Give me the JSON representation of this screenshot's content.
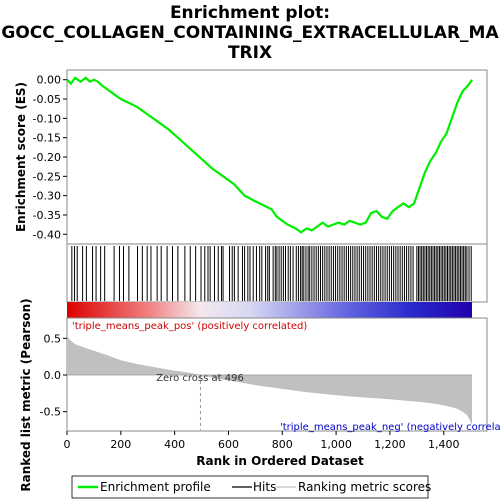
{
  "chart_data": {
    "type": "line",
    "title_lines": [
      "Enrichment plot:",
      "GOCC_COLLAGEN_CONTAINING_EXTRACELLULAR_MA",
      "TRIX"
    ],
    "es_panel": {
      "ylabel": "Enrichment score (ES)",
      "ylim": [
        -0.42,
        0.02
      ],
      "yticks": [
        "0.00",
        "-0.05",
        "-0.10",
        "-0.15",
        "-0.20",
        "-0.25",
        "-0.30",
        "-0.35",
        "-0.40"
      ],
      "series": [
        {
          "name": "Enrichment profile",
          "color": "#00ee00",
          "x": [
            0,
            15,
            30,
            50,
            70,
            85,
            100,
            115,
            130,
            150,
            180,
            200,
            230,
            260,
            300,
            340,
            380,
            420,
            460,
            500,
            540,
            580,
            620,
            660,
            700,
            730,
            760,
            780,
            800,
            820,
            850,
            870,
            890,
            910,
            930,
            950,
            970,
            990,
            1010,
            1030,
            1050,
            1070,
            1090,
            1110,
            1130,
            1150,
            1170,
            1190,
            1210,
            1230,
            1250,
            1270,
            1290,
            1310,
            1330,
            1350,
            1370,
            1390,
            1410,
            1430,
            1450,
            1470,
            1490,
            1505
          ],
          "y": [
            0.0,
            -0.01,
            0.005,
            -0.005,
            0.005,
            -0.005,
            0.0,
            -0.005,
            -0.015,
            -0.025,
            -0.04,
            -0.05,
            -0.06,
            -0.07,
            -0.09,
            -0.11,
            -0.13,
            -0.155,
            -0.18,
            -0.205,
            -0.23,
            -0.25,
            -0.27,
            -0.3,
            -0.315,
            -0.325,
            -0.335,
            -0.355,
            -0.365,
            -0.375,
            -0.385,
            -0.395,
            -0.385,
            -0.39,
            -0.38,
            -0.37,
            -0.38,
            -0.375,
            -0.37,
            -0.375,
            -0.365,
            -0.37,
            -0.375,
            -0.37,
            -0.345,
            -0.34,
            -0.355,
            -0.36,
            -0.34,
            -0.33,
            -0.32,
            -0.33,
            -0.32,
            -0.28,
            -0.24,
            -0.21,
            -0.19,
            -0.16,
            -0.14,
            -0.1,
            -0.06,
            -0.03,
            -0.015,
            0.0
          ]
        }
      ]
    },
    "hits": [
      18,
      28,
      38,
      58,
      72,
      95,
      108,
      125,
      140,
      175,
      195,
      210,
      230,
      262,
      280,
      298,
      312,
      335,
      350,
      372,
      392,
      412,
      438,
      458,
      478,
      498,
      512,
      524,
      532,
      548,
      562,
      574,
      580,
      604,
      614,
      622,
      636,
      652,
      660,
      672,
      680,
      692,
      704,
      716,
      724,
      738,
      746,
      752,
      766,
      774,
      780,
      788,
      796,
      804,
      812,
      822,
      830,
      840,
      852,
      860,
      868,
      874,
      880,
      888,
      896,
      902,
      910,
      918,
      926,
      934,
      942,
      950,
      958,
      966,
      974,
      982,
      990,
      998,
      1006,
      1014,
      1022,
      1030,
      1038,
      1046,
      1054,
      1062,
      1070,
      1078,
      1086,
      1094,
      1102,
      1110,
      1118,
      1126,
      1134,
      1142,
      1150,
      1158,
      1166,
      1174,
      1182,
      1190,
      1198,
      1206,
      1214,
      1222,
      1230,
      1238,
      1246,
      1254,
      1262,
      1270,
      1278,
      1286,
      1300,
      1306,
      1312,
      1318,
      1324,
      1330,
      1336,
      1342,
      1348,
      1354,
      1360,
      1366,
      1372,
      1378,
      1384,
      1390,
      1396,
      1402,
      1408,
      1414,
      1420,
      1426,
      1432,
      1438,
      1444,
      1450,
      1456,
      1462,
      1468,
      1474,
      1480,
      1486,
      1494,
      1502
    ],
    "metric_panel": {
      "ylabel": "Ranked list metric (Pearson)",
      "ylim": [
        -0.75,
        0.75
      ],
      "yticks": [
        "0.5",
        "0.0",
        "-0.5"
      ],
      "fill_color": "#c0c0c0",
      "x": [
        0,
        10,
        30,
        60,
        100,
        150,
        200,
        260,
        320,
        380,
        440,
        496,
        560,
        640,
        720,
        800,
        880,
        960,
        1040,
        1120,
        1200,
        1260,
        1320,
        1380,
        1420,
        1450,
        1470,
        1485,
        1495,
        1505
      ],
      "y": [
        0.55,
        0.48,
        0.42,
        0.38,
        0.33,
        0.27,
        0.2,
        0.15,
        0.11,
        0.07,
        0.04,
        0.0,
        -0.05,
        -0.1,
        -0.15,
        -0.19,
        -0.23,
        -0.26,
        -0.29,
        -0.31,
        -0.33,
        -0.35,
        -0.37,
        -0.4,
        -0.43,
        -0.46,
        -0.5,
        -0.54,
        -0.6,
        -0.68
      ]
    },
    "xlabel": "Rank in Ordered Dataset",
    "xlim": [
      0,
      1505
    ],
    "xticks": [
      "0",
      "200",
      "400",
      "600",
      "800",
      "1,000",
      "1,200",
      "1,400"
    ],
    "zero_cross_label": "Zero cross at 496",
    "zero_cross": 496,
    "pos_label": "'triple_means_peak_pos' (positively correlated)",
    "neg_label": "'triple_means_peak_neg' (negatively correlated)",
    "pos_label_color": "#cc0000",
    "neg_label_color": "#0000cc",
    "legend": {
      "placement": "bottom",
      "items": [
        "Enrichment profile",
        "Hits",
        "Ranking metric scores"
      ]
    }
  }
}
